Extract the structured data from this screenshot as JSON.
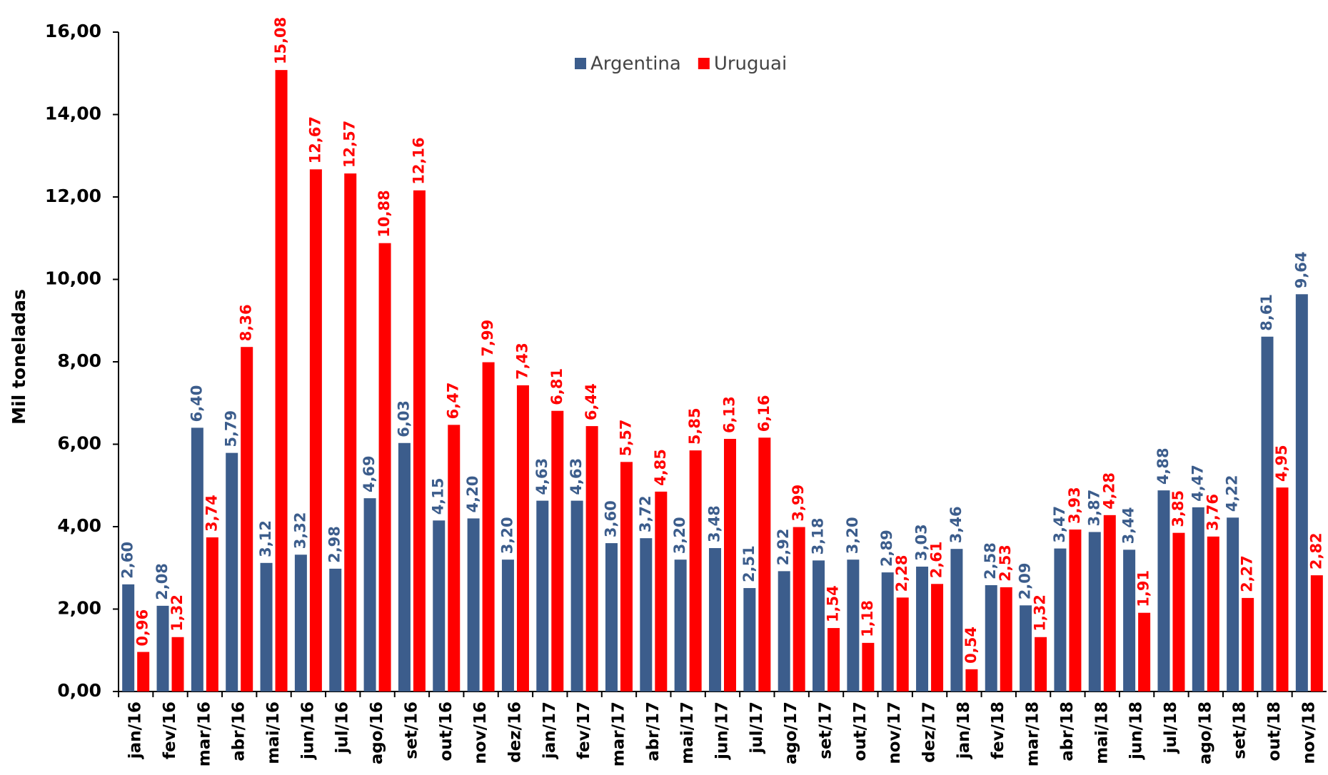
{
  "chart_data": {
    "type": "bar",
    "y_label": "Mil toneladas",
    "categories": [
      "jan/16",
      "fev/16",
      "mar/16",
      "abr/16",
      "mai/16",
      "jun/16",
      "jul/16",
      "ago/16",
      "set/16",
      "out/16",
      "nov/16",
      "dez/16",
      "jan/17",
      "fev/17",
      "mar/17",
      "abr/17",
      "mai/17",
      "jun/17",
      "jul/17",
      "ago/17",
      "set/17",
      "out/17",
      "nov/17",
      "dez/17",
      "jan/18",
      "fev/18",
      "mar/18",
      "abr/18",
      "mai/18",
      "jun/18",
      "jul/18",
      "ago/18",
      "set/18",
      "out/18",
      "nov/18"
    ],
    "series": [
      {
        "name": "Argentina",
        "color": "#3c5d8c",
        "values": [
          2.6,
          2.08,
          6.4,
          5.79,
          3.12,
          3.32,
          2.98,
          4.69,
          6.03,
          4.15,
          4.2,
          3.2,
          4.63,
          4.63,
          3.6,
          3.72,
          3.2,
          3.48,
          2.51,
          2.92,
          3.18,
          3.2,
          2.89,
          3.03,
          3.46,
          2.58,
          2.09,
          3.47,
          3.87,
          3.44,
          4.88,
          4.47,
          4.22,
          8.61,
          9.64
        ],
        "value_labels": [
          "2,60",
          "2,08",
          "6,40",
          "5,79",
          "3,12",
          "3,32",
          "2,98",
          "4,69",
          "6,03",
          "4,15",
          "4,20",
          "3,20",
          "4,63",
          "4,63",
          "3,60",
          "3,72",
          "3,20",
          "3,48",
          "2,51",
          "2,92",
          "3,18",
          "3,20",
          "2,89",
          "3,03",
          "3,46",
          "2,58",
          "2,09",
          "3,47",
          "3,87",
          "3,44",
          "4,88",
          "4,47",
          "4,22",
          "8,61",
          "9,64"
        ]
      },
      {
        "name": "Uruguai",
        "color": "#ff0000",
        "values": [
          0.96,
          1.32,
          3.74,
          8.36,
          15.08,
          12.67,
          12.57,
          10.88,
          12.16,
          6.47,
          7.99,
          7.43,
          6.81,
          6.44,
          5.57,
          4.85,
          5.85,
          6.13,
          6.16,
          3.99,
          1.54,
          1.18,
          2.28,
          2.61,
          0.54,
          2.53,
          1.32,
          3.93,
          4.28,
          1.91,
          3.85,
          3.76,
          2.27,
          4.95,
          2.82
        ],
        "value_labels": [
          "0,96",
          "1,32",
          "3,74",
          "8,36",
          "15,08",
          "12,67",
          "12,57",
          "10,88",
          "12,16",
          "6,47",
          "7,99",
          "7,43",
          "6,81",
          "6,44",
          "5,57",
          "4,85",
          "5,85",
          "6,13",
          "6,16",
          "3,99",
          "1,54",
          "1,18",
          "2,28",
          "2,61",
          "0,54",
          "2,53",
          "1,32",
          "3,93",
          "4,28",
          "1,91",
          "3,85",
          "3,76",
          "2,27",
          "4,95",
          "2,82"
        ]
      }
    ],
    "ylim": [
      0,
      16
    ],
    "yticks": [
      {
        "value": 0,
        "label": "0,00"
      },
      {
        "value": 2,
        "label": "2,00"
      },
      {
        "value": 4,
        "label": "4,00"
      },
      {
        "value": 6,
        "label": "6,00"
      },
      {
        "value": 8,
        "label": "8,00"
      },
      {
        "value": 10,
        "label": "10,00"
      },
      {
        "value": 12,
        "label": "12,00"
      },
      {
        "value": 14,
        "label": "14,00"
      },
      {
        "value": 16,
        "label": "16,00"
      }
    ],
    "legend": "top"
  }
}
